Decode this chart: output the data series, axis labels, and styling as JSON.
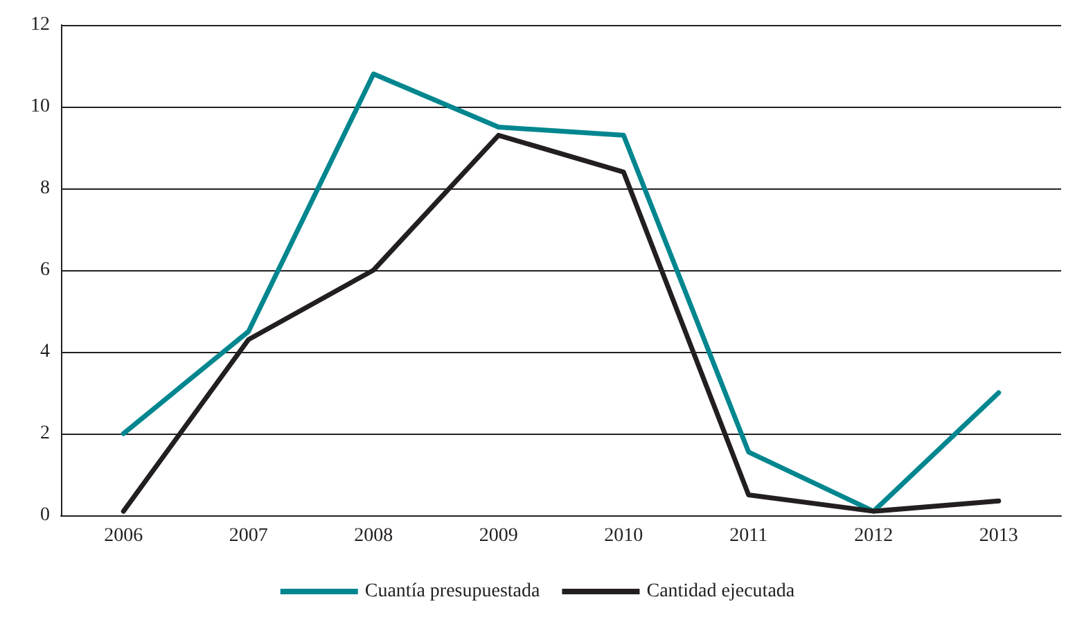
{
  "chart_data": {
    "type": "line",
    "categories": [
      "2006",
      "2007",
      "2008",
      "2009",
      "2010",
      "2011",
      "2012",
      "2013"
    ],
    "series": [
      {
        "name": "Cuantía presupuestada",
        "color": "#00868f",
        "values": [
          2.0,
          4.5,
          10.8,
          9.5,
          9.3,
          1.55,
          0.1,
          3.0
        ]
      },
      {
        "name": "Cantidad ejecutada",
        "color": "#231f20",
        "values": [
          0.1,
          4.3,
          6.0,
          9.3,
          8.4,
          0.5,
          0.1,
          0.35
        ]
      }
    ],
    "ylim": [
      0,
      12
    ],
    "yticks": [
      0,
      2,
      4,
      6,
      8,
      10,
      12
    ],
    "grid": "y",
    "legend": "bottom",
    "marker": "none",
    "line_style": "solid"
  }
}
